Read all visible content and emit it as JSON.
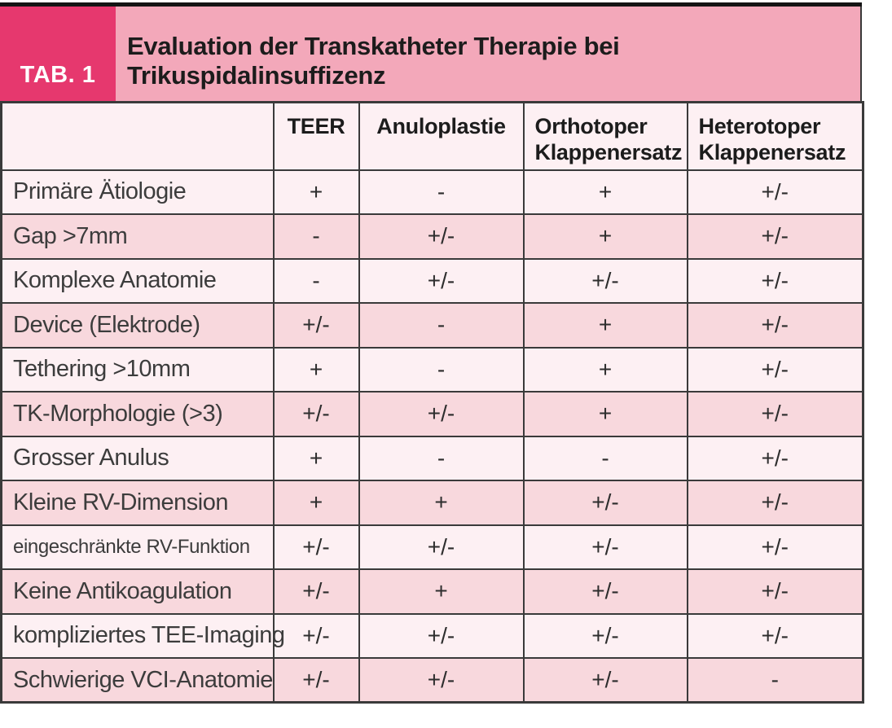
{
  "header": {
    "tab_label": "TAB. 1",
    "title": "Evaluation der Transkatheter Therapie bei Trikuspidalinsuffizenz"
  },
  "table": {
    "columns": [
      "TEER",
      "Anuloplastie",
      "Orthotoper Klappenersatz",
      "Heterotoper Klappenersatz"
    ],
    "rows": [
      {
        "label": "Primäre Ätiologie",
        "small": false,
        "values": [
          "+",
          "-",
          "+",
          "+/-"
        ]
      },
      {
        "label": "Gap >7mm",
        "small": false,
        "values": [
          "-",
          "+/-",
          "+",
          "+/-"
        ]
      },
      {
        "label": "Komplexe Anatomie",
        "small": false,
        "values": [
          "-",
          "+/-",
          "+/-",
          "+/-"
        ]
      },
      {
        "label": "Device (Elektrode)",
        "small": false,
        "values": [
          "+/-",
          "-",
          "+",
          "+/-"
        ]
      },
      {
        "label": "Tethering >10mm",
        "small": false,
        "values": [
          "+",
          "-",
          "+",
          "+/-"
        ]
      },
      {
        "label": "TK-Morphologie (>3)",
        "small": false,
        "values": [
          "+/-",
          "+/-",
          "+",
          "+/-"
        ]
      },
      {
        "label": "Grosser Anulus",
        "small": false,
        "values": [
          "+",
          "-",
          "-",
          "+/-"
        ]
      },
      {
        "label": "Kleine RV-Dimension",
        "small": false,
        "values": [
          "+",
          "+",
          "+/-",
          "+/-"
        ]
      },
      {
        "label": "eingeschränkte RV-Funktion",
        "small": true,
        "values": [
          "+/-",
          "+/-",
          "+/-",
          "+/-"
        ]
      },
      {
        "label": "Keine Antikoagulation",
        "small": false,
        "values": [
          "+/-",
          "+",
          "+/-",
          "+/-"
        ]
      },
      {
        "label": "kompliziertes TEE-Imaging",
        "small": false,
        "values": [
          "+/-",
          "+/-",
          "+/-",
          "+/-"
        ]
      },
      {
        "label": "Schwierige VCI-Anatomie",
        "small": false,
        "values": [
          "+/-",
          "+/-",
          "+/-",
          "-"
        ]
      }
    ]
  },
  "chart_data": {
    "type": "table",
    "title": "Evaluation der Transkatheter Therapie bei Trikuspidalinsuffizenz",
    "columns": [
      "",
      "TEER",
      "Anuloplastie",
      "Orthotoper Klappenersatz",
      "Heterotoper Klappenersatz"
    ],
    "rows": [
      [
        "Primäre Ätiologie",
        "+",
        "-",
        "+",
        "+/-"
      ],
      [
        "Gap >7mm",
        "-",
        "+/-",
        "+",
        "+/-"
      ],
      [
        "Komplexe Anatomie",
        "-",
        "+/-",
        "+/-",
        "+/-"
      ],
      [
        "Device (Elektrode)",
        "+/-",
        "-",
        "+",
        "+/-"
      ],
      [
        "Tethering >10mm",
        "+",
        "-",
        "+",
        "+/-"
      ],
      [
        "TK-Morphologie (>3)",
        "+/-",
        "+/-",
        "+",
        "+/-"
      ],
      [
        "Grosser Anulus",
        "+",
        "-",
        "-",
        "+/-"
      ],
      [
        "Kleine RV-Dimension",
        "+",
        "+",
        "+/-",
        "+/-"
      ],
      [
        "eingeschränkte RV-Funktion",
        "+/-",
        "+/-",
        "+/-",
        "+/-"
      ],
      [
        "Keine Antikoagulation",
        "+/-",
        "+",
        "+/-",
        "+/-"
      ],
      [
        "kompliziertes TEE-Imaging",
        "+/-",
        "+/-",
        "+/-",
        "+/-"
      ],
      [
        "Schwierige VCI-Anatomie",
        "+/-",
        "+/-",
        "+/-",
        "-"
      ]
    ]
  },
  "colors": {
    "accent_pink": "#e6386e",
    "band_pink": "#f3a8ba",
    "row_light": "#fdf0f3",
    "row_dark": "#f8d8dd",
    "border_col": "#3a3a3a",
    "bar_black": "#141414"
  }
}
